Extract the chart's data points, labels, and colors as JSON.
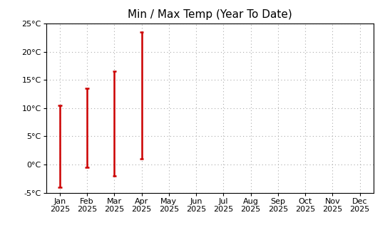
{
  "title": "Min / Max Temp (Year To Date)",
  "months": [
    "Jan\n2025",
    "Feb\n2025",
    "Mar\n2025",
    "Apr\n2025",
    "May\n2025",
    "Jun\n2025",
    "Jul\n2025",
    "Aug\n2025",
    "Sep\n2025",
    "Oct\n2025",
    "Nov\n2025",
    "Dec\n2025"
  ],
  "month_positions": [
    0,
    1,
    2,
    3,
    4,
    5,
    6,
    7,
    8,
    9,
    10,
    11
  ],
  "data": [
    {
      "month_idx": 0,
      "min": -4.0,
      "max": 10.5
    },
    {
      "month_idx": 1,
      "min": -0.5,
      "max": 13.5
    },
    {
      "month_idx": 2,
      "min": -2.0,
      "max": 16.5
    },
    {
      "month_idx": 3,
      "min": 1.0,
      "max": 23.5
    }
  ],
  "bar_color": "#cc0000",
  "ylim": [
    -5,
    25
  ],
  "yticks": [
    -5,
    0,
    5,
    10,
    15,
    20,
    25
  ],
  "ytick_labels": [
    "-5°C",
    "0°C",
    "5°C",
    "10°C",
    "15°C",
    "20°C",
    "25°C"
  ],
  "background_color": "#ffffff",
  "grid_color": "#aaaaaa",
  "line_width": 1.8,
  "title_fontsize": 11,
  "tick_fontsize": 8
}
